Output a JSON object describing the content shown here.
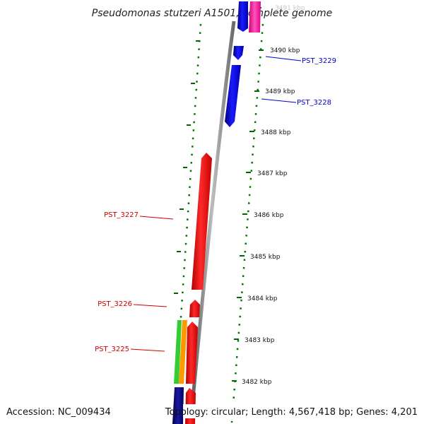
{
  "title": "Pseudomonas stutzeri A1501, complete genome",
  "footer": {
    "accession": "Accession: NC_009434",
    "topology": "Topology: circular; Length: 4,567,418 bp; Genes: 4,201"
  },
  "scale": {
    "ticks": [
      "3491 kbp",
      "3490 kbp",
      "3489 kbp",
      "3488 kbp",
      "3487 kbp",
      "3486 kbp",
      "3485 kbp",
      "3484 kbp",
      "3483 kbp",
      "3482 kbp"
    ]
  },
  "genes": [
    {
      "name": "PST_3229",
      "color": "#0000cc"
    },
    {
      "name": "PST_3228",
      "color": "#0000cc"
    },
    {
      "name": "PST_3227",
      "color": "#cc0000"
    },
    {
      "name": "PST_3226",
      "color": "#cc0000"
    },
    {
      "name": "PST_3225",
      "color": "#cc0000"
    }
  ],
  "colors": {
    "backbone": "#808080",
    "forward_strand": "#0000ff",
    "reverse_strand": "#ff0000",
    "rna": "#ff3399",
    "dark_gene": "#000080",
    "green_feature": "#33cc33",
    "orange_feature": "#ff9900",
    "track_dots": "#007700"
  }
}
